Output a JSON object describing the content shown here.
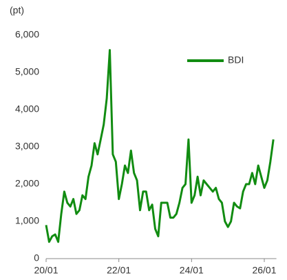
{
  "chart_data": {
    "type": "line",
    "y_unit": "(pt)",
    "x": [
      "2020-01",
      "2020-02",
      "2020-03",
      "2020-04",
      "2020-05",
      "2020-06",
      "2020-07",
      "2020-08",
      "2020-09",
      "2020-10",
      "2020-11",
      "2020-12",
      "2021-01",
      "2021-02",
      "2021-03",
      "2021-04",
      "2021-05",
      "2021-06",
      "2021-07",
      "2021-08",
      "2021-09",
      "2021-10",
      "2021-11",
      "2021-12",
      "2022-01",
      "2022-02",
      "2022-03",
      "2022-04",
      "2022-05",
      "2022-06",
      "2022-07",
      "2022-08",
      "2022-09",
      "2022-10",
      "2022-11",
      "2022-12",
      "2023-01",
      "2023-02",
      "2023-03",
      "2023-04",
      "2023-05",
      "2023-06",
      "2023-07",
      "2023-08",
      "2023-09",
      "2023-10",
      "2023-11",
      "2023-12",
      "2024-01",
      "2024-02",
      "2024-03",
      "2024-04",
      "2024-05",
      "2024-06",
      "2024-07",
      "2024-08",
      "2024-09",
      "2024-10",
      "2024-11",
      "2024-12",
      "2025-01",
      "2025-02",
      "2025-03",
      "2025-04",
      "2025-05",
      "2025-06",
      "2025-07",
      "2025-08",
      "2025-09",
      "2025-10",
      "2025-11",
      "2025-12",
      "2026-01",
      "2026-02",
      "2026-03",
      "2026-04"
    ],
    "series": [
      {
        "name": "BDI",
        "color": "#118c11",
        "values": [
          900,
          450,
          600,
          650,
          450,
          1200,
          1800,
          1500,
          1400,
          1600,
          1200,
          1300,
          1700,
          1600,
          2200,
          2500,
          3100,
          2800,
          3200,
          3600,
          4300,
          5600,
          2800,
          2600,
          1600,
          2000,
          2500,
          2300,
          2900,
          2300,
          2100,
          1300,
          1800,
          1800,
          1300,
          1450,
          800,
          600,
          1500,
          1500,
          1500,
          1100,
          1100,
          1200,
          1500,
          1900,
          2000,
          3200,
          1500,
          1700,
          2200,
          1700,
          2100,
          2000,
          1900,
          1800,
          1900,
          1600,
          1500,
          1000,
          850,
          1000,
          1500,
          1400,
          1350,
          1800,
          2000,
          2000,
          2300,
          2000,
          2500,
          2200,
          1900,
          2100,
          2600,
          3200
        ]
      }
    ],
    "xlim": [
      "2020-01",
      "2026-05"
    ],
    "xticks": [
      {
        "value": "2020-01",
        "label": "20/01"
      },
      {
        "value": "2022-01",
        "label": "22/01"
      },
      {
        "value": "2024-01",
        "label": "24/01"
      },
      {
        "value": "2026-01",
        "label": "26/01"
      }
    ],
    "ylim": [
      0,
      6000
    ],
    "yticks": [
      0,
      {
        "value": 1000,
        "label": "1,000"
      },
      {
        "value": 2000,
        "label": "2,000"
      },
      {
        "value": 3000,
        "label": "3,000"
      },
      {
        "value": 4000,
        "label": "4,000"
      },
      {
        "value": 5000,
        "label": "5,000"
      },
      {
        "value": 6000,
        "label": "6,000"
      }
    ],
    "grid": false,
    "legend": "top right"
  }
}
